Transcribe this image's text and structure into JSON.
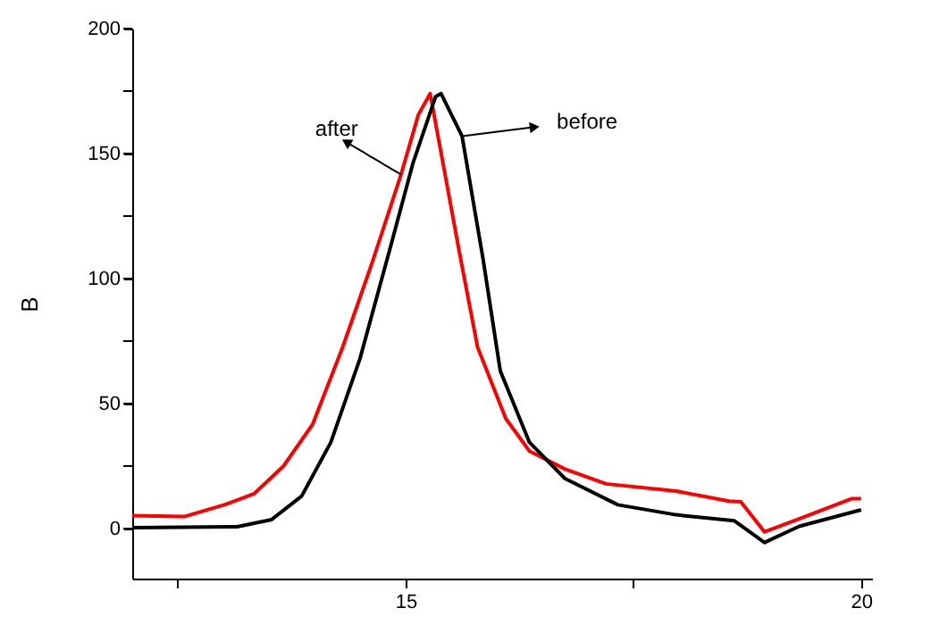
{
  "chart_data": {
    "type": "line",
    "ylabel": "B",
    "xlim": [
      12,
      20.12
    ],
    "xticks": [
      {
        "value": 12.5,
        "label": null
      },
      15,
      {
        "value": 17.5,
        "label": null
      },
      20
    ],
    "ylim": [
      -20,
      200
    ],
    "yticks": [
      0,
      {
        "value": 25,
        "label": null
      },
      50,
      {
        "value": 75,
        "label": null
      },
      100,
      {
        "value": 125,
        "label": null
      },
      150,
      {
        "value": 175,
        "label": null
      },
      200
    ],
    "grid": false,
    "marker": "none",
    "line_style": "solid",
    "series": [
      {
        "color": "#ff0000",
        "x": [
          12.0,
          12.57,
          13.01,
          13.34,
          13.66,
          13.98,
          14.31,
          14.63,
          14.95,
          15.14,
          15.27,
          15.59,
          15.79,
          16.1,
          16.36,
          16.75,
          17.2,
          17.97,
          18.55,
          18.68,
          18.94,
          19.32,
          19.9,
          20.0
        ],
        "values": [
          5.2,
          4.8,
          9.5,
          14,
          25,
          41.7,
          72.6,
          106,
          141.6,
          165.5,
          174,
          110.7,
          72.6,
          44,
          31,
          23.8,
          17.9,
          15,
          11,
          10.7,
          -1.3,
          3.9,
          12,
          12
        ]
      },
      {
        "color": "#000000",
        "x": [
          12.0,
          13.15,
          13.53,
          13.86,
          14.18,
          14.5,
          14.82,
          15.08,
          15.33,
          15.39,
          15.62,
          15.85,
          16.04,
          16.36,
          16.75,
          17.33,
          17.97,
          18.61,
          18.94,
          19.32,
          20.0
        ],
        "values": [
          0.4,
          0.7,
          3.6,
          13,
          34.5,
          68,
          110.7,
          146,
          172.8,
          174,
          157,
          108,
          63,
          34.5,
          20,
          9.5,
          5.5,
          3.1,
          -5.6,
          0.9,
          7.5
        ]
      }
    ],
    "annotations": [
      {
        "text": "after",
        "x": 14.95,
        "y": 141.6
      },
      {
        "text": "before",
        "x": 15.62,
        "y": 157
      }
    ]
  }
}
